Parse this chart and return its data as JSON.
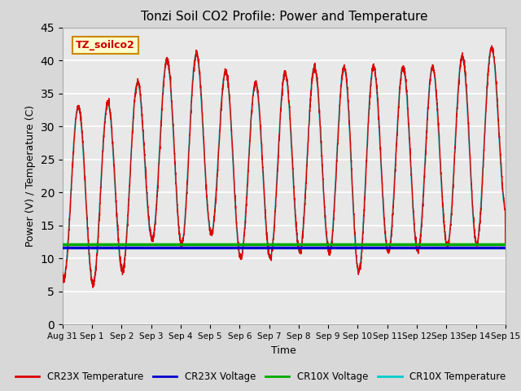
{
  "title": "Tonzi Soil CO2 Profile: Power and Temperature",
  "xlabel": "Time",
  "ylabel": "Power (V) / Temperature (C)",
  "ylim": [
    0,
    45
  ],
  "yticks": [
    0,
    5,
    10,
    15,
    20,
    25,
    30,
    35,
    40,
    45
  ],
  "annotation_text": "TZ_soilco2",
  "annotation_bg": "#ffffcc",
  "annotation_border": "#cc8800",
  "fig_bg": "#e0e0e0",
  "plot_bg": "#e8e8e8",
  "grid_color": "#ffffff",
  "line_colors": {
    "cr23x_temp": "#dd0000",
    "cr23x_volt": "#0000cc",
    "cr10x_volt": "#00aa00",
    "cr10x_temp": "#00cccc"
  },
  "cr23x_volt_value": 11.6,
  "cr10x_volt_value": 12.1,
  "xtick_labels": [
    "Aug 31",
    "Sep 1",
    "Sep 2",
    "Sep 3",
    "Sep 4",
    "Sep 5",
    "Sep 6",
    "Sep 7",
    "Sep 8",
    "Sep 9",
    "Sep 10",
    "Sep 11",
    "Sep 12",
    "Sep 13",
    "Sep 14",
    "Sep 15"
  ],
  "legend_entries": [
    "CR23X Temperature",
    "CR23X Voltage",
    "CR10X Voltage",
    "CR10X Temperature"
  ]
}
